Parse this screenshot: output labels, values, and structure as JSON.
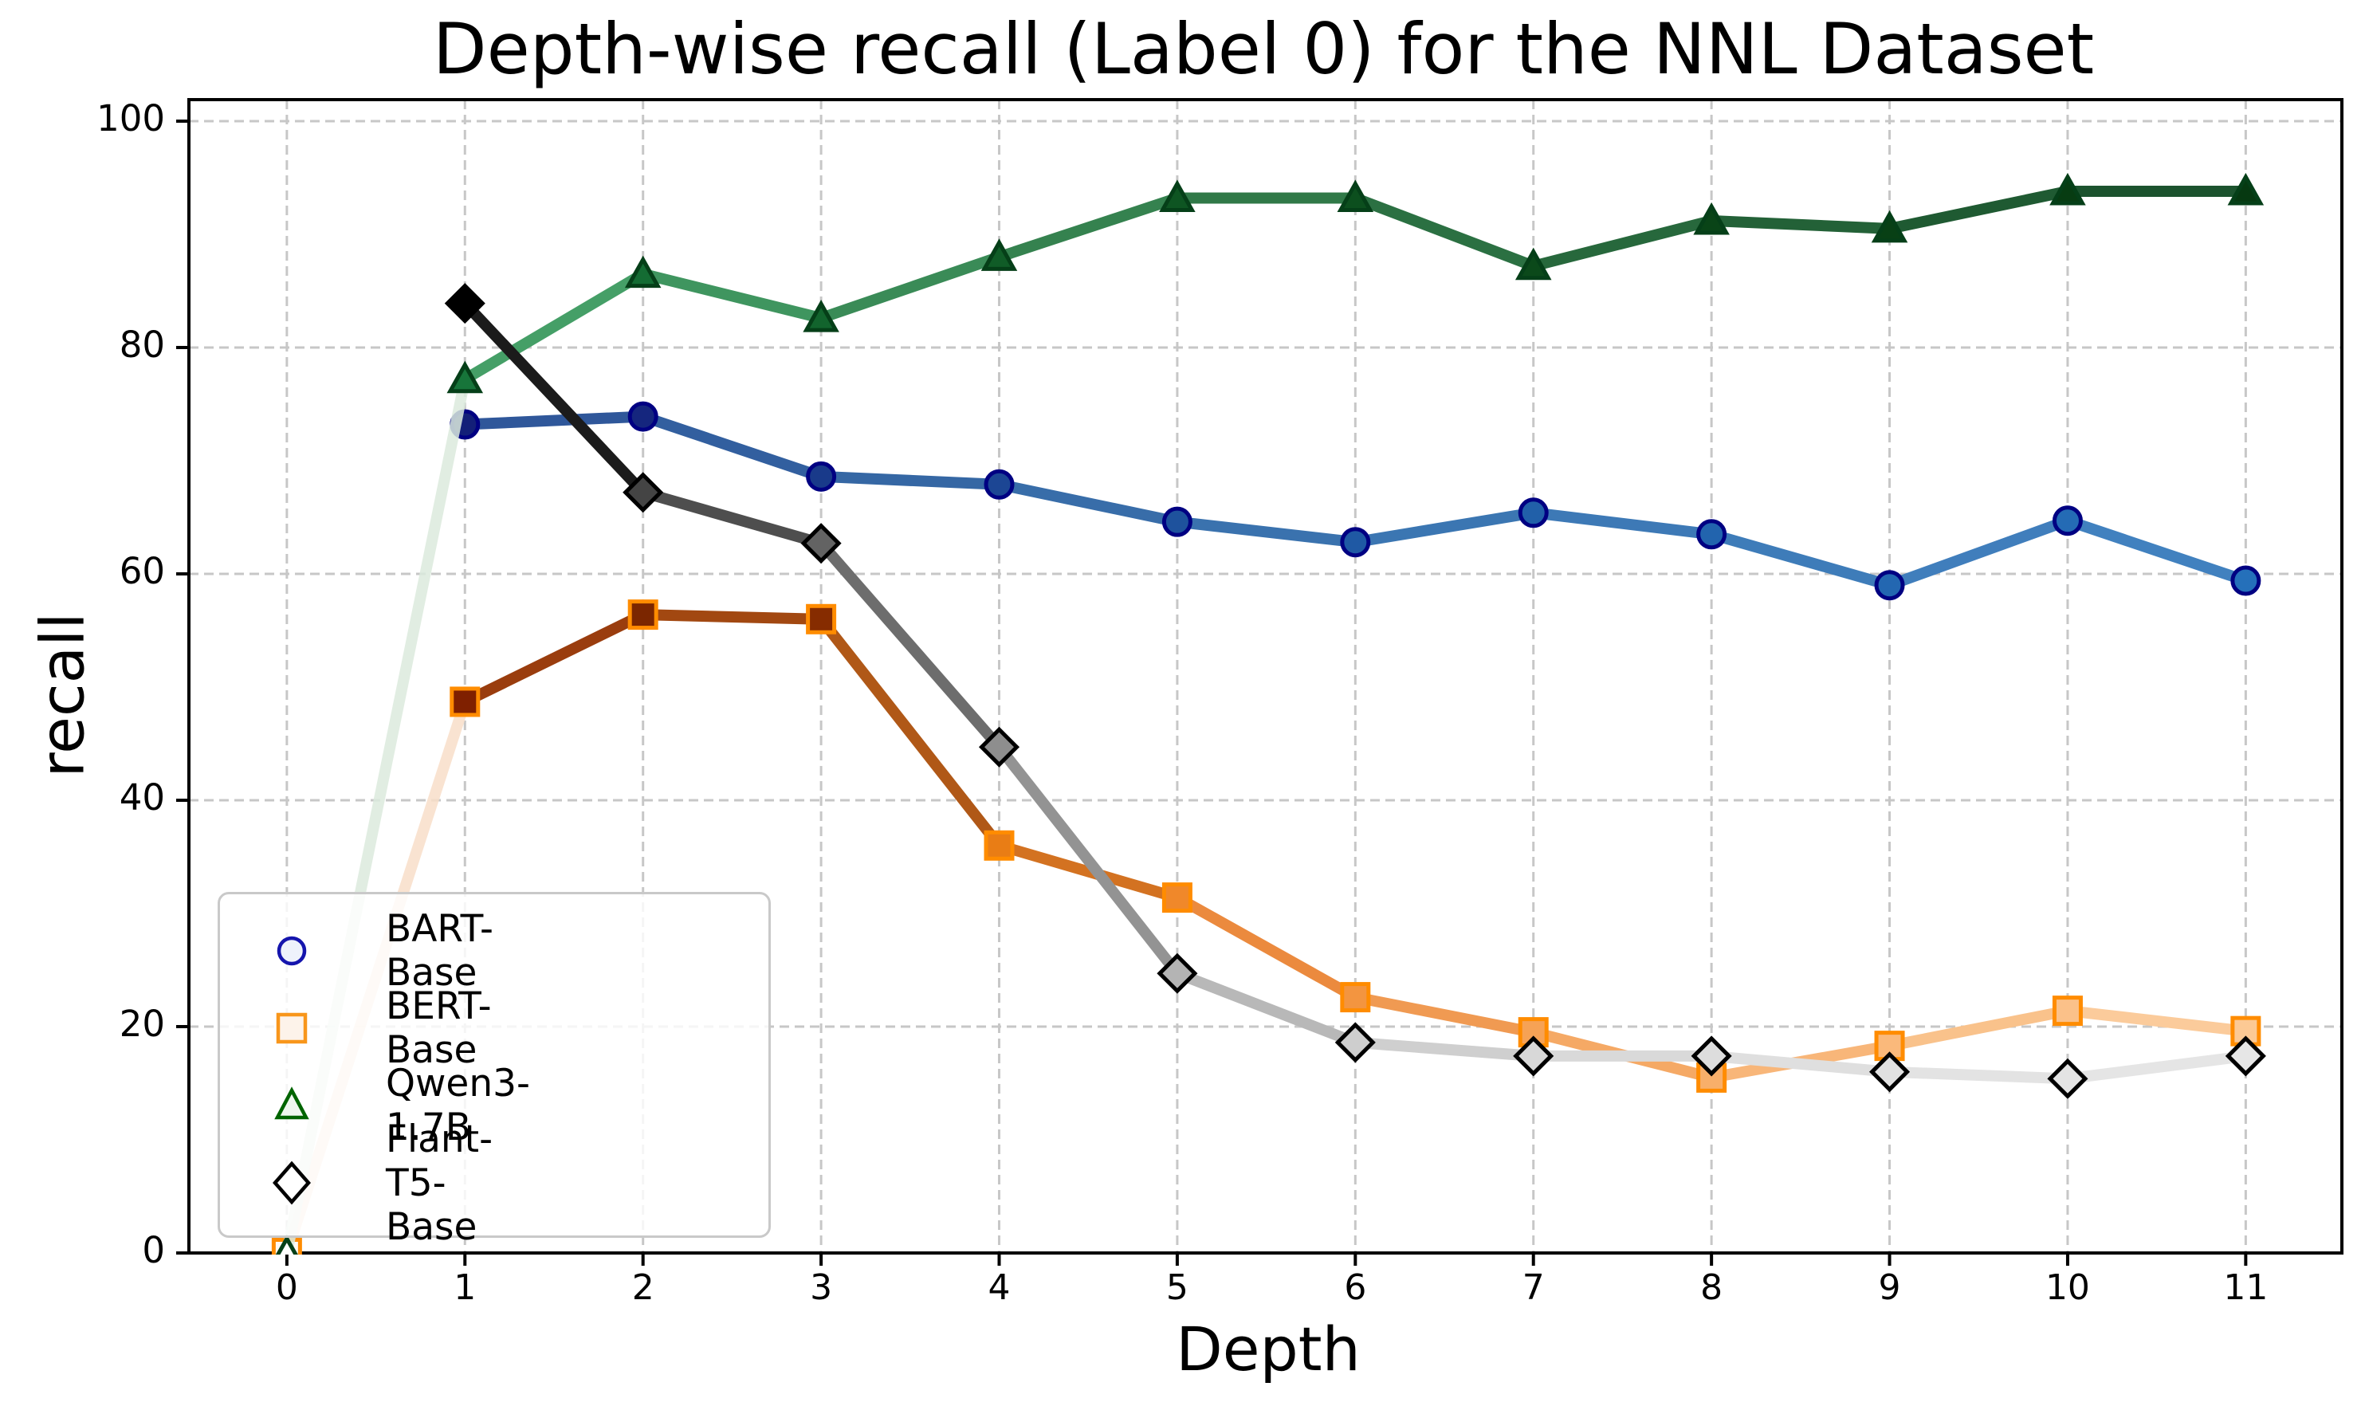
{
  "chart_data": {
    "type": "line",
    "title": "Depth-wise recall (Label 0) for the NNL Dataset",
    "xlabel": "Depth",
    "ylabel": "recall",
    "x": [
      0,
      1,
      2,
      3,
      4,
      5,
      6,
      7,
      8,
      9,
      10,
      11
    ],
    "xticks": [
      0,
      1,
      2,
      3,
      4,
      5,
      6,
      7,
      8,
      9,
      10,
      11
    ],
    "yticks": [
      0,
      20,
      40,
      60,
      80,
      100
    ],
    "xlim": [
      -0.55,
      11.54
    ],
    "ylim": [
      0,
      101.9
    ],
    "grid": true,
    "grid_color": "#c7c7c7",
    "axis_color": "#000000",
    "background": "#ffffff",
    "legend_position": "lower left",
    "series": [
      {
        "name": "BART-Base",
        "marker": "circle",
        "edge_color": "#000082",
        "legend_edge": "#1515ad",
        "legend_fill": "#eef2fb",
        "values": [
          null,
          73.2,
          73.9,
          68.6,
          67.9,
          64.6,
          62.8,
          65.4,
          63.5,
          59.0,
          64.7,
          59.4
        ],
        "marker_fills": [
          "#ffffff",
          "#131f78",
          "#15267e",
          "#193a8a",
          "#1c4694",
          "#1e529d",
          "#1f59a4",
          "#2160a9",
          "#2264ae",
          "#2367b1",
          "#246bb5",
          "#2570ba"
        ],
        "segment_colors": [
          null,
          "#2f579a",
          "#325f9f",
          "#3567a4",
          "#386da9",
          "#3a72ae",
          "#3b76b2",
          "#3d79b6",
          "#3e7cb9",
          "#407ebc",
          "#4181bf"
        ],
        "first_segment_opacity": 1
      },
      {
        "name": "BERT-Base",
        "marker": "square",
        "edge_color": "#ff8c00",
        "legend_edge": "#f8961b",
        "legend_fill": "#fdf3ea",
        "values": [
          0,
          48.7,
          56.4,
          56.0,
          36.0,
          31.4,
          22.6,
          19.5,
          15.5,
          18.3,
          21.4,
          19.6
        ],
        "marker_fills": [
          "#fffaf4",
          "#7f2000",
          "#7b2600",
          "#862c00",
          "#e97d15",
          "#f0882a",
          "#f39540",
          "#f6a255",
          "#f8af6a",
          "#fab97b",
          "#fbc189",
          "#fcc994"
        ],
        "segment_colors": [
          "#f9dfc9",
          "#9a3d0e",
          "#a24811",
          "#b05817",
          "#d37221",
          "#eb8a3e",
          "#f09a52",
          "#f5a965",
          "#f8b679",
          "#f9c28b",
          "#fbcb9b"
        ],
        "first_segment_opacity": 0.85
      },
      {
        "name": "Qwen3-1.7B",
        "marker": "triangle",
        "edge_color": "#053f18",
        "legend_edge": "#006400",
        "legend_fill": "#eff7ef",
        "values": [
          0,
          77.2,
          86.5,
          82.6,
          88.0,
          93.2,
          93.2,
          87.2,
          91.2,
          90.5,
          93.8,
          93.8
        ],
        "marker_fills": [
          "#ffffff",
          "#17753a",
          "#146c33",
          "#12642d",
          "#105c27",
          "#0e5522",
          "#0c4f1e",
          "#0b491a",
          "#094417",
          "#084015",
          "#073c12",
          "#063911"
        ],
        "segment_colors": [
          "#dcebde",
          "#459f67",
          "#3f955f",
          "#3a8b57",
          "#35824f",
          "#307948",
          "#2b7042",
          "#27683c",
          "#236137",
          "#1f5a32",
          "#1c532e"
        ],
        "first_segment_opacity": 0.85
      },
      {
        "name": "Flant-T5-Base",
        "marker": "diamond",
        "edge_color": "#000000",
        "legend_edge": "#000000",
        "legend_fill": "#ffffff",
        "values": [
          null,
          83.9,
          67.2,
          62.7,
          44.7,
          24.7,
          18.6,
          17.4,
          17.4,
          16.0,
          15.4,
          17.4
        ],
        "marker_fills": [
          null,
          "#000000",
          "#444444",
          "#636363",
          "#8e8e8e",
          "#b4b4b4",
          "#cecece",
          "#d8d8d8",
          "#dddddd",
          "#e1e1e1",
          "#e4e4e4",
          "#e6e6e6"
        ],
        "segment_colors": [
          null,
          "#1b1b1b",
          "#4e4e4e",
          "#6d6d6d",
          "#939393",
          "#b8b8b8",
          "#cfcfcf",
          "#d9d9d9",
          "#dfdfdf",
          "#e3e3e3",
          "#e5e5e5"
        ],
        "first_segment_opacity": 1
      }
    ]
  }
}
